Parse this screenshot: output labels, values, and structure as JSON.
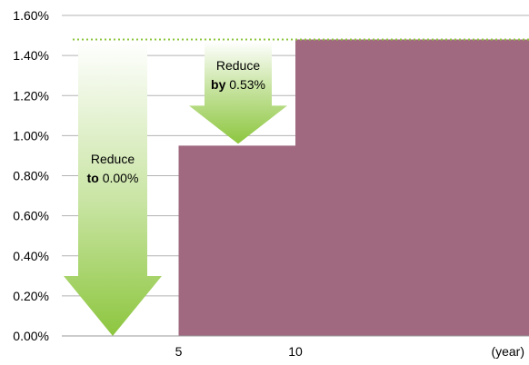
{
  "chart_data": {
    "type": "area",
    "x_unit_label": "(year)",
    "x_ticks": [
      {
        "value": 5,
        "label": "5"
      },
      {
        "value": 10,
        "label": "10"
      }
    ],
    "xlim": [
      0,
      20
    ],
    "ylim": [
      0,
      1.6
    ],
    "y_ticks": [
      {
        "value": 0.0,
        "label": "0.00%"
      },
      {
        "value": 0.2,
        "label": "0.20%"
      },
      {
        "value": 0.4,
        "label": "0.40%"
      },
      {
        "value": 0.6,
        "label": "0.60%"
      },
      {
        "value": 0.8,
        "label": "0.80%"
      },
      {
        "value": 1.0,
        "label": "1.00%"
      },
      {
        "value": 1.2,
        "label": "1.20%"
      },
      {
        "value": 1.4,
        "label": "1.40%"
      },
      {
        "value": 1.6,
        "label": "1.60%"
      }
    ],
    "grid": true,
    "steps": [
      {
        "x_start": 5,
        "x_end": 10,
        "y": 0.95
      },
      {
        "x_start": 10,
        "x_end": 20,
        "y": 1.48
      }
    ],
    "reference_line": {
      "y": 1.48,
      "style": "dotted"
    },
    "annotations": [
      {
        "line1": "Reduce",
        "bold": "to",
        "value": "0.00%"
      },
      {
        "line1": "Reduce",
        "bold": "by",
        "value": "0.53%"
      }
    ],
    "colors": {
      "step_fill": "#a0697f",
      "arrow_top": "#ffffff",
      "arrow_bottom": "#8dc63f",
      "reference_line": "#8dc63f",
      "grid": "#b3b3b3"
    }
  }
}
